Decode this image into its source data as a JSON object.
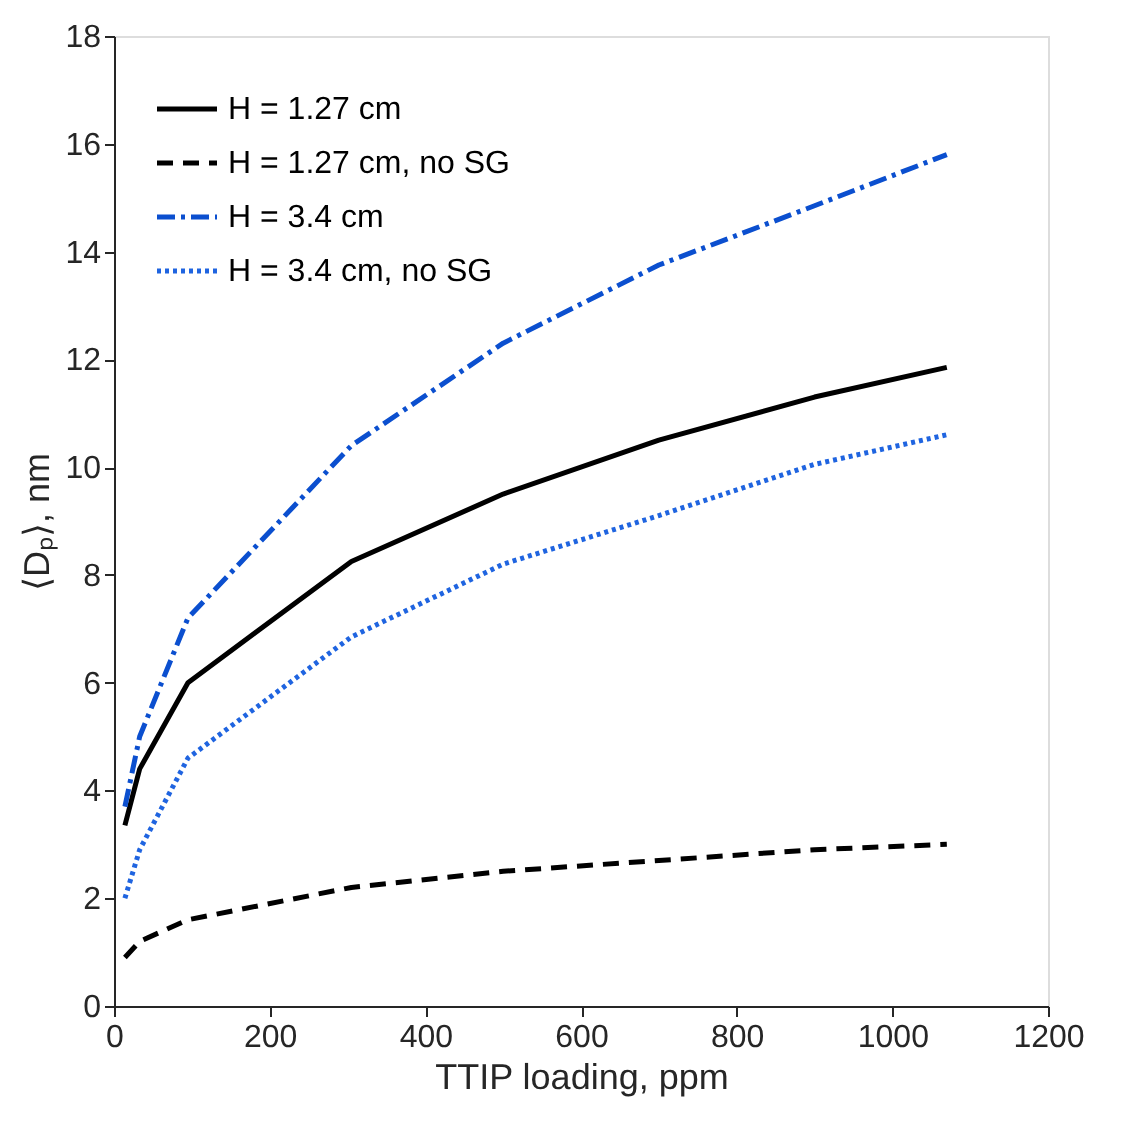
{
  "chart_data": {
    "type": "line",
    "xlabel": "TTIP loading, ppm",
    "ylabel": "⟨Dₚ⟩, nm",
    "x": [
      14,
      33,
      95,
      305,
      500,
      700,
      900,
      1070
    ],
    "series": [
      {
        "name": "H = 1.27 cm",
        "color": "#000000",
        "line_style": "solid",
        "values": [
          3.35,
          4.4,
          6.0,
          8.25,
          9.5,
          10.5,
          11.3,
          11.85
        ]
      },
      {
        "name": "H = 1.27 cm, no SG",
        "color": "#000000",
        "line_style": "dashed",
        "values": [
          0.9,
          1.2,
          1.6,
          2.2,
          2.5,
          2.7,
          2.9,
          3.0
        ]
      },
      {
        "name": "H = 3.4 cm",
        "color": "#0b4fcf",
        "line_style": "dashdot",
        "values": [
          3.7,
          5.0,
          7.2,
          10.4,
          12.3,
          13.75,
          14.85,
          15.8
        ]
      },
      {
        "name": "H = 3.4 cm, no SG",
        "color": "#1f64e0",
        "line_style": "dotted",
        "values": [
          2.0,
          2.9,
          4.6,
          6.85,
          8.2,
          9.1,
          10.05,
          10.6
        ]
      }
    ],
    "xlim": [
      0,
      1200
    ],
    "xticks": [
      0,
      200,
      400,
      600,
      800,
      1000,
      1200
    ],
    "ylim": [
      0,
      18
    ],
    "yticks": [
      0,
      2,
      4,
      6,
      8,
      10,
      12,
      14,
      16,
      18
    ],
    "grid": false,
    "legend": "top left",
    "marker": "none"
  }
}
